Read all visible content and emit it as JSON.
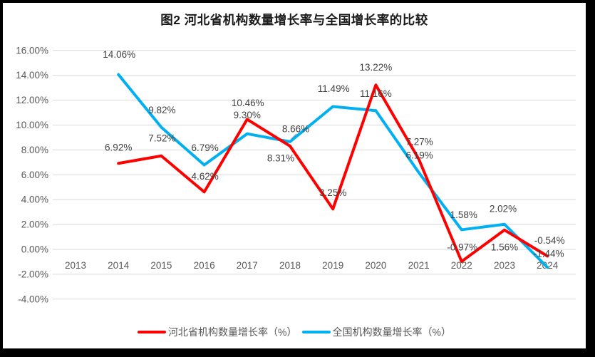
{
  "chart_data": {
    "type": "line",
    "title": "图2  河北省机构数量增长率与全国增长率的比较",
    "categories": [
      "2013",
      "2014",
      "2015",
      "2016",
      "2017",
      "2018",
      "2019",
      "2020",
      "2021",
      "2022",
      "2023",
      "2024"
    ],
    "y_axis": {
      "min": -4,
      "max": 16,
      "step": 2,
      "tick_values": [
        16,
        14,
        12,
        10,
        8,
        6,
        4,
        2,
        0,
        -2,
        -4
      ],
      "tick_labels": [
        "16.00%",
        "14.00%",
        "12.00%",
        "10.00%",
        "8.00%",
        "6.00%",
        "4.00%",
        "2.00%",
        "0.00%",
        "-2.00%",
        "-4.00%"
      ]
    },
    "grid": true,
    "legend_position": "bottom",
    "value_suffix": "%",
    "series": [
      {
        "id": "national",
        "name": "全国机构数量增长率（%）",
        "color": "#00B0F0",
        "values": [
          null,
          14.06,
          9.82,
          6.79,
          9.3,
          8.66,
          11.49,
          11.16,
          6.19,
          1.58,
          2.02,
          -1.44
        ],
        "point_labels": [
          "",
          "14.06%",
          "9.82%",
          "6.79%",
          "9.30%",
          "8.66%",
          "11.49%",
          "11.16%",
          "6.19%",
          "1.58%",
          "2.02%",
          "-1.44%"
        ],
        "label_offsets": [
          [
            0,
            0
          ],
          [
            1,
            -28
          ],
          [
            1,
            -24
          ],
          [
            1,
            -24
          ],
          [
            0,
            -26
          ],
          [
            8,
            -18
          ],
          [
            1,
            -25
          ],
          [
            0,
            -24
          ],
          [
            1,
            -24
          ],
          [
            3,
            -21
          ],
          [
            -2,
            -22
          ],
          [
            2,
            -19
          ]
        ]
      },
      {
        "id": "hebei",
        "name": "河北省机构数量增长率（%）",
        "color": "#FF0000",
        "values": [
          null,
          6.92,
          7.52,
          4.62,
          10.46,
          8.31,
          3.25,
          13.22,
          7.27,
          -0.97,
          1.56,
          -0.54
        ],
        "point_labels": [
          "",
          "6.92%",
          "7.52%",
          "4.62%",
          "10.46%",
          "8.31%",
          "3.25%",
          "13.22%",
          "7.27%",
          "-0.97%",
          "1.56%",
          "-0.54%"
        ],
        "label_offsets": [
          [
            0,
            0
          ],
          [
            0,
            -22
          ],
          [
            1,
            -25
          ],
          [
            1,
            -22
          ],
          [
            1,
            -23
          ],
          [
            -13,
            17
          ],
          [
            0,
            -23
          ],
          [
            0,
            -25
          ],
          [
            1,
            -24
          ],
          [
            1,
            -20
          ],
          [
            0,
            24
          ],
          [
            3,
            -22
          ]
        ]
      }
    ],
    "legend_order": [
      "hebei",
      "national"
    ],
    "styles": {
      "grid_color": "#D9D9D9",
      "tick_color": "#595959",
      "data_label_color": "#404040",
      "leader_line_color": "#A6A6A6",
      "frame_border_color": "#000000",
      "background": "#FFFFFF"
    }
  }
}
